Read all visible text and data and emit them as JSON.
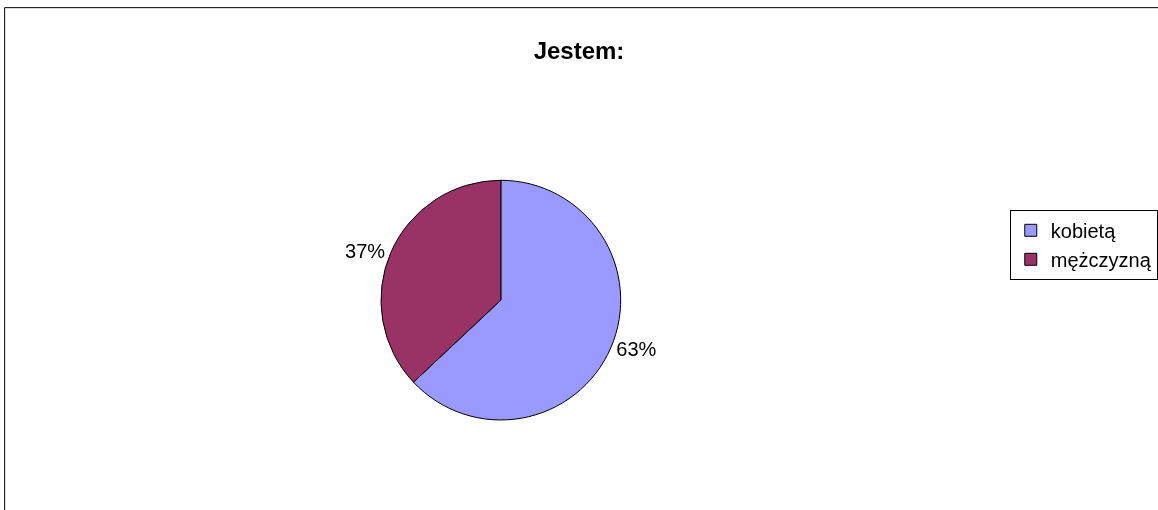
{
  "chart_data": {
    "type": "pie",
    "title": "Jestem:",
    "categories": [
      "kobietą",
      "mężczyzną"
    ],
    "values": [
      63,
      37
    ],
    "colors": [
      "#9999ff",
      "#993366"
    ],
    "value_labels": [
      "63%",
      "37%"
    ],
    "legend": "right"
  }
}
